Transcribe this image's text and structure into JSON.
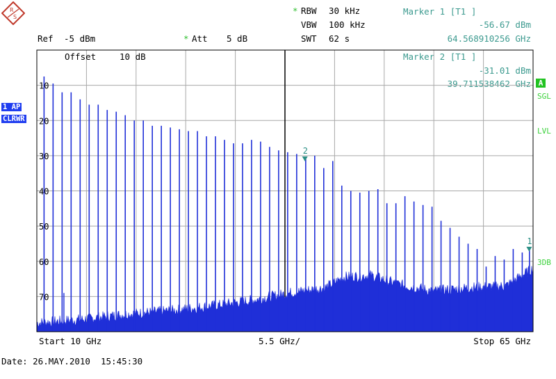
{
  "header": {
    "rbw_label": "RBW",
    "rbw_value": "30 kHz",
    "vbw_label": "VBW",
    "vbw_value": "100 kHz",
    "swt_label": "SWT",
    "swt_value": "62 s",
    "ref_label": "Ref",
    "ref_value": "-5 dBm",
    "att_label": "Att",
    "att_value": "5 dB",
    "offset_label": "Offset",
    "offset_value": "10 dB"
  },
  "markers": [
    {
      "title": "Marker 1 [T1 ]",
      "level": "-56.67 dBm",
      "freq": "64.568910256 GHz",
      "label": "1"
    },
    {
      "title": "Marker 2 [T1 ]",
      "level": "-31.01 dBm",
      "freq": "39.711538462 GHz",
      "label": "2"
    }
  ],
  "side": {
    "left_trace": "1 AP",
    "left_mode": "CLRWR",
    "a": "A",
    "sgl": "SGL",
    "lvl": "LVL",
    "db3": "3DB"
  },
  "footer": {
    "start": "Start 10 GHz",
    "center": "5.5 GHz/",
    "stop": "Stop 65 GHz",
    "date": "Date: 26.MAY.2010  15:45:30"
  },
  "colors": {
    "trace": "#1f2fd8",
    "grid": "#a8a8a8",
    "marker": "#2a8f85",
    "status": "#3ad13a"
  },
  "chart_data": {
    "type": "line",
    "xlabel": "",
    "ylabel": "",
    "xlim": [
      10,
      65
    ],
    "ylim": [
      -80,
      0
    ],
    "y_unit": "dBm",
    "x_unit": "GHz",
    "y_ticks": [
      -10,
      -20,
      -30,
      -40,
      -50,
      -60,
      -70
    ],
    "y_tick_labels": [
      "10",
      "20",
      "30",
      "40",
      "50",
      "60",
      "70"
    ],
    "grid": true,
    "series": [
      {
        "harmonics_x_ghz": [
          10.8,
          11.8,
          12.8,
          13.8,
          14.8,
          15.8,
          16.8,
          17.8,
          18.8,
          19.8,
          20.8,
          21.8,
          22.8,
          23.8,
          24.8,
          25.8,
          26.8,
          27.8,
          28.8,
          29.8,
          30.8,
          31.8,
          32.8,
          33.8,
          34.8,
          35.8,
          36.8,
          37.8,
          38.8,
          39.8,
          40.8,
          41.8,
          42.8,
          43.8,
          44.8,
          45.8,
          46.8,
          47.8,
          48.8,
          49.8,
          50.8,
          51.8,
          52.8,
          53.8,
          54.8,
          55.8,
          56.8,
          57.8,
          58.8,
          59.8,
          60.8,
          61.8,
          62.8,
          63.8,
          64.6
        ],
        "harmonics_y_dbm": [
          -7.5,
          -9.5,
          -12,
          -12,
          -14,
          -15.5,
          -15.5,
          -17,
          -17.5,
          -18.5,
          -20,
          -20,
          -21.5,
          -21.5,
          -22,
          -22.5,
          -23,
          -23,
          -24.5,
          -24.5,
          -25.5,
          -26.5,
          -26.5,
          -25.5,
          -26,
          -27.5,
          -28.5,
          -29,
          -29.5,
          -31,
          -30,
          -33.5,
          -31.5,
          -38.5,
          -40,
          -40.5,
          -40,
          -39.5,
          -43.5,
          -43.5,
          -41.5,
          -43,
          -44,
          -44.5,
          -48.5,
          -50.5,
          -53,
          -55,
          -56.5,
          -61.5,
          -58.5,
          -59.5,
          -56.5,
          -57.5,
          -56.7
        ]
      }
    ],
    "noise_floor_dbm": [
      [
        10,
        -77.5
      ],
      [
        15,
        -76.5
      ],
      [
        20,
        -75
      ],
      [
        25,
        -74
      ],
      [
        30,
        -72.5
      ],
      [
        34,
        -71
      ],
      [
        38,
        -69
      ],
      [
        42,
        -67.5
      ],
      [
        44,
        -64.5
      ],
      [
        47,
        -64
      ],
      [
        50,
        -66.5
      ],
      [
        54,
        -68.5
      ],
      [
        58,
        -67.5
      ],
      [
        62,
        -67
      ],
      [
        65,
        -62
      ]
    ],
    "markers": [
      {
        "label": "1",
        "x": 64.568910256,
        "y": -56.67
      },
      {
        "label": "2",
        "x": 39.711538462,
        "y": -31.01
      }
    ]
  }
}
